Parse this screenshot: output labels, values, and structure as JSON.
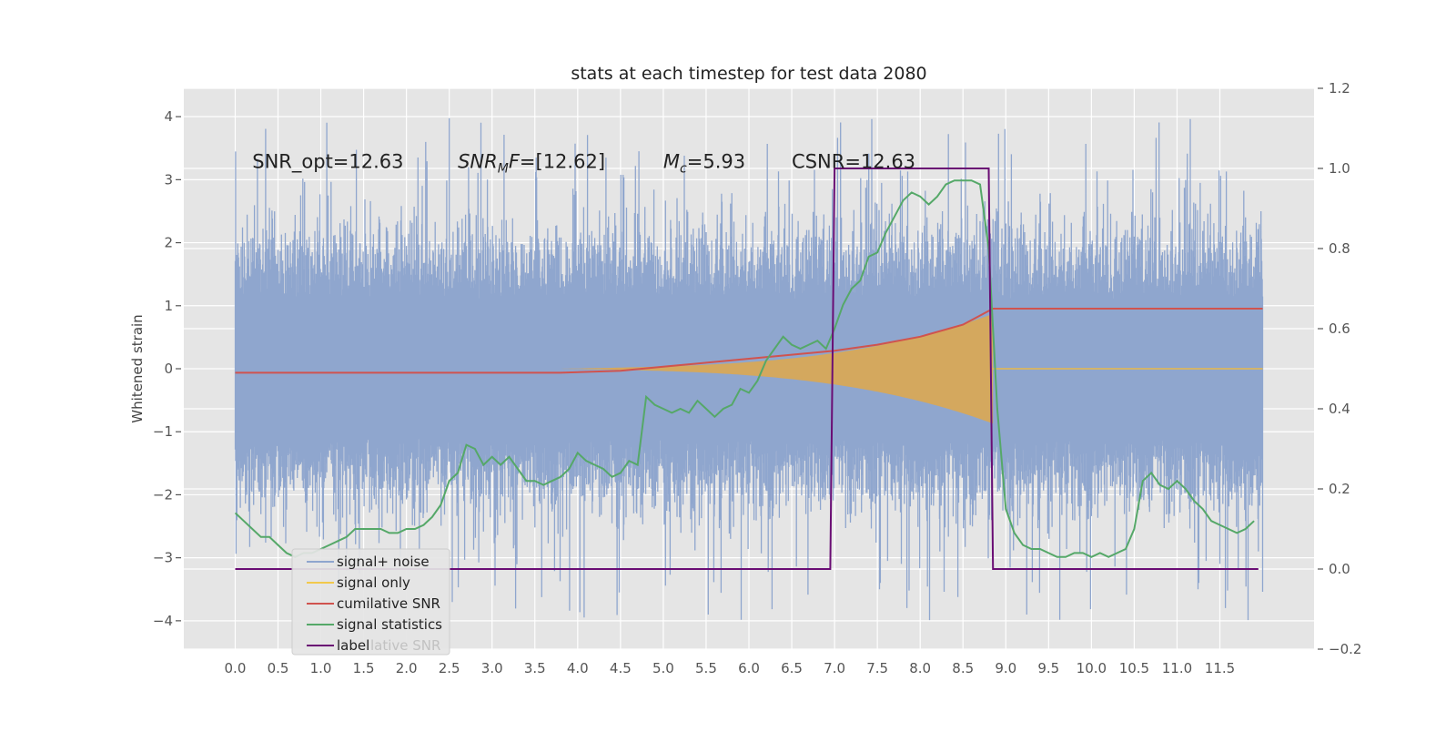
{
  "chart_data": {
    "type": "line",
    "title": "stats at each timestep for test data 2080",
    "ylabel": "Whitened strain",
    "xlabel": "",
    "xlim": [
      -0.6,
      12.6
    ],
    "ylim": [
      -4.45,
      4.45
    ],
    "y2lim": [
      -0.2,
      1.2
    ],
    "grid": true,
    "legend_position": "lower-left",
    "x_ticks": [
      "0.0",
      "0.5",
      "1.0",
      "1.5",
      "2.0",
      "2.5",
      "3.0",
      "3.5",
      "4.0",
      "4.5",
      "5.0",
      "5.5",
      "6.0",
      "6.5",
      "7.0",
      "7.5",
      "8.0",
      "8.5",
      "9.0",
      "9.5",
      "10.0",
      "10.5",
      "11.0",
      "11.5"
    ],
    "y_ticks": [
      4,
      3,
      2,
      1,
      0,
      -1,
      -2,
      -3,
      -4
    ],
    "y2_ticks": [
      "1.2",
      "1.0",
      "0.8",
      "0.6",
      "0.4",
      "0.2",
      "0.0",
      "−0.2"
    ],
    "annotations": [
      {
        "text": "SNR_opt=12.63",
        "x": 0.2,
        "y": 3.3
      },
      {
        "text": "SNR",
        "sub": "M",
        "tail": "F=[12.62]",
        "x": 2.6,
        "y": 3.3
      },
      {
        "text": "M",
        "sub": "c",
        "tail": "=5.93",
        "x": 5.0,
        "y": 3.3
      },
      {
        "text": "CSNR=12.63",
        "x": 6.5,
        "y": 3.3
      }
    ],
    "series": [
      {
        "name": "signal+ noise",
        "color": "#8fa6ce",
        "axis": "left",
        "x_range": [
          0.0,
          12.0
        ],
        "envelope_typical": 2.2,
        "envelope_peak": 4.1
      },
      {
        "name": "signal only",
        "color": "#f2c94c",
        "axis": "left",
        "start": 3.8,
        "end": 8.85,
        "peak_amplitude": 0.75
      },
      {
        "name": "cumilative SNR",
        "color": "#d0534e",
        "axis": "right",
        "x": [
          0.0,
          3.8,
          4.5,
          5.0,
          5.5,
          6.0,
          6.5,
          7.0,
          7.5,
          8.0,
          8.5,
          8.85,
          12.0
        ],
        "y": [
          0.49,
          0.49,
          0.495,
          0.505,
          0.515,
          0.525,
          0.535,
          0.545,
          0.56,
          0.58,
          0.61,
          0.65,
          0.65
        ]
      },
      {
        "name": "signal statistics",
        "color": "#55a868",
        "axis": "right",
        "x": [
          0.0,
          0.1,
          0.2,
          0.3,
          0.4,
          0.5,
          0.6,
          0.7,
          0.8,
          0.9,
          1.0,
          1.1,
          1.2,
          1.3,
          1.4,
          1.5,
          1.6,
          1.7,
          1.8,
          1.9,
          2.0,
          2.1,
          2.2,
          2.3,
          2.4,
          2.5,
          2.6,
          2.7,
          2.8,
          2.9,
          3.0,
          3.1,
          3.2,
          3.3,
          3.4,
          3.5,
          3.6,
          3.7,
          3.8,
          3.9,
          4.0,
          4.1,
          4.2,
          4.3,
          4.4,
          4.5,
          4.6,
          4.7,
          4.8,
          4.9,
          5.0,
          5.1,
          5.2,
          5.3,
          5.4,
          5.5,
          5.6,
          5.7,
          5.8,
          5.9,
          6.0,
          6.1,
          6.2,
          6.3,
          6.4,
          6.5,
          6.6,
          6.7,
          6.8,
          6.9,
          7.0,
          7.1,
          7.2,
          7.3,
          7.4,
          7.5,
          7.6,
          7.7,
          7.8,
          7.9,
          8.0,
          8.1,
          8.2,
          8.3,
          8.4,
          8.5,
          8.6,
          8.7,
          8.8,
          8.9,
          9.0,
          9.1,
          9.2,
          9.3,
          9.4,
          9.5,
          9.6,
          9.7,
          9.8,
          9.9,
          10.0,
          10.1,
          10.2,
          10.3,
          10.4,
          10.5,
          10.6,
          10.7,
          10.8,
          10.9,
          11.0,
          11.1,
          11.2,
          11.3,
          11.4,
          11.5,
          11.6,
          11.7,
          11.8,
          11.9
        ],
        "y": [
          0.14,
          0.12,
          0.1,
          0.08,
          0.08,
          0.06,
          0.04,
          0.03,
          0.04,
          0.04,
          0.05,
          0.06,
          0.07,
          0.08,
          0.1,
          0.1,
          0.1,
          0.1,
          0.09,
          0.09,
          0.1,
          0.1,
          0.11,
          0.13,
          0.16,
          0.22,
          0.24,
          0.31,
          0.3,
          0.26,
          0.28,
          0.26,
          0.28,
          0.25,
          0.22,
          0.22,
          0.21,
          0.22,
          0.23,
          0.25,
          0.29,
          0.27,
          0.26,
          0.25,
          0.23,
          0.24,
          0.27,
          0.26,
          0.43,
          0.41,
          0.4,
          0.39,
          0.4,
          0.39,
          0.42,
          0.4,
          0.38,
          0.4,
          0.41,
          0.45,
          0.44,
          0.47,
          0.52,
          0.55,
          0.58,
          0.56,
          0.55,
          0.56,
          0.57,
          0.55,
          0.6,
          0.66,
          0.7,
          0.72,
          0.78,
          0.79,
          0.84,
          0.88,
          0.92,
          0.94,
          0.93,
          0.91,
          0.93,
          0.96,
          0.97,
          0.97,
          0.97,
          0.96,
          0.8,
          0.4,
          0.15,
          0.09,
          0.06,
          0.05,
          0.05,
          0.04,
          0.03,
          0.03,
          0.04,
          0.04,
          0.03,
          0.04,
          0.03,
          0.04,
          0.05,
          0.1,
          0.22,
          0.24,
          0.21,
          0.2,
          0.22,
          0.2,
          0.17,
          0.15,
          0.12,
          0.11,
          0.1,
          0.09,
          0.1,
          0.12
        ]
      },
      {
        "name": "label",
        "color": "#6a0d74",
        "axis": "right",
        "x": [
          0.0,
          6.95,
          7.0,
          8.8,
          8.85,
          11.95
        ],
        "y": [
          0.0,
          0.0,
          1.0,
          1.0,
          0.0,
          0.0
        ]
      }
    ]
  },
  "legend": {
    "items": [
      {
        "label": "signal+ noise",
        "color": "#8fa6ce"
      },
      {
        "label": "signal only",
        "color": "#f2c94c"
      },
      {
        "label": "cumilative SNR",
        "color": "#d0534e"
      },
      {
        "label": "signal statistics",
        "color": "#55a868"
      },
      {
        "label": "label",
        "color": "#6a0d74"
      }
    ],
    "ghost_text": "lative SNR"
  }
}
